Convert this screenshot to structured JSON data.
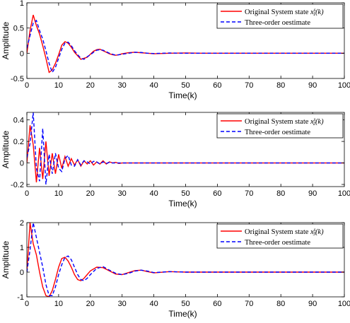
{
  "chart_data": [
    {
      "type": "line",
      "xlabel": "Time(k)",
      "ylabel": "Amplitude",
      "xlim": [
        0,
        100
      ],
      "ylim": [
        -0.5,
        1
      ],
      "xticks": [
        "0",
        "10",
        "20",
        "30",
        "40",
        "50",
        "60",
        "70",
        "80",
        "90",
        "100"
      ],
      "yticks": [
        "-0.5",
        "0",
        "0.5",
        "1"
      ],
      "grid": false,
      "legend_position": "top-right",
      "series": [
        {
          "name": "Original System state",
          "name_math": "x",
          "name_sup": "s",
          "name_sub": "1",
          "name_tail": "(k)",
          "color": "#ff0000",
          "style": "solid",
          "x": [
            0,
            1,
            2,
            3,
            4,
            5,
            6,
            7,
            8,
            9,
            10,
            11,
            12,
            13,
            14,
            15,
            16,
            17,
            18,
            19,
            20,
            21,
            22,
            23,
            24,
            25,
            26,
            27,
            28,
            29,
            30,
            32,
            34,
            36,
            38,
            40,
            45,
            50,
            55,
            60,
            70,
            80,
            90,
            100
          ],
          "y": [
            0,
            0.45,
            0.76,
            0.55,
            0.38,
            0.15,
            -0.1,
            -0.38,
            -0.33,
            -0.2,
            -0.03,
            0.16,
            0.23,
            0.2,
            0.12,
            0.02,
            -0.05,
            -0.12,
            -0.1,
            -0.08,
            -0.02,
            0.04,
            0.07,
            0.08,
            0.05,
            0.02,
            -0.01,
            -0.03,
            -0.04,
            -0.03,
            -0.01,
            0.01,
            0.02,
            0.01,
            0,
            -0.01,
            0,
            0.005,
            0,
            0,
            0,
            0,
            0,
            0
          ]
        },
        {
          "name": "Three-order oestimate",
          "color": "#0000ff",
          "style": "dashed",
          "x": [
            0,
            1,
            2,
            3,
            4,
            5,
            6,
            7,
            8,
            9,
            10,
            11,
            12,
            13,
            14,
            15,
            16,
            17,
            18,
            19,
            20,
            21,
            22,
            23,
            24,
            25,
            26,
            27,
            28,
            29,
            30,
            32,
            34,
            36,
            38,
            40,
            45,
            50,
            55,
            60,
            70,
            80,
            90,
            100
          ],
          "y": [
            0.1,
            0.35,
            0.6,
            0.65,
            0.45,
            0.28,
            0.05,
            -0.2,
            -0.38,
            -0.28,
            -0.1,
            0.08,
            0.2,
            0.22,
            0.15,
            0.05,
            -0.03,
            -0.1,
            -0.12,
            -0.07,
            -0.03,
            0.02,
            0.06,
            0.07,
            0.06,
            0.03,
            0,
            -0.02,
            -0.04,
            -0.03,
            -0.02,
            0,
            0.02,
            0.015,
            0,
            -0.005,
            0.005,
            0,
            0,
            0,
            0,
            0,
            0,
            0
          ]
        }
      ]
    },
    {
      "type": "line",
      "xlabel": "Time(k)",
      "ylabel": "Amplitude",
      "xlim": [
        0,
        100
      ],
      "ylim": [
        -0.22,
        0.47
      ],
      "xticks": [
        "0",
        "10",
        "20",
        "30",
        "40",
        "50",
        "60",
        "70",
        "80",
        "90",
        "100"
      ],
      "yticks": [
        "-0.2",
        "0",
        "0.2",
        "0.4"
      ],
      "grid": false,
      "legend_position": "top-right",
      "series": [
        {
          "name": "Original System state",
          "name_math": "x",
          "name_sup": "s",
          "name_sub": "2",
          "name_tail": "(k)",
          "color": "#ff0000",
          "style": "solid",
          "x": [
            0,
            1,
            2,
            3,
            4,
            5,
            6,
            7,
            8,
            9,
            10,
            11,
            12,
            13,
            14,
            15,
            16,
            17,
            18,
            19,
            20,
            21,
            22,
            23,
            24,
            25,
            26,
            27,
            28,
            29,
            30,
            32,
            34,
            36,
            38,
            40,
            50,
            60,
            70,
            80,
            90,
            100
          ],
          "y": [
            0,
            0.35,
            0.17,
            -0.18,
            0.14,
            -0.15,
            0.2,
            -0.12,
            0.09,
            -0.1,
            0.08,
            -0.05,
            0.06,
            -0.03,
            0.04,
            -0.02,
            0.03,
            -0.03,
            0.02,
            -0.01,
            0.02,
            -0.02,
            0.01,
            -0.01,
            0.02,
            -0.01,
            0.01,
            0,
            0.005,
            -0.005,
            0,
            0,
            0,
            0,
            0,
            0,
            0,
            0,
            0,
            0,
            0,
            0
          ]
        },
        {
          "name": "Three-order oestimate",
          "color": "#0000ff",
          "style": "dashed",
          "x": [
            0,
            1,
            2,
            3,
            4,
            5,
            6,
            7,
            8,
            9,
            10,
            11,
            12,
            13,
            14,
            15,
            16,
            17,
            18,
            19,
            20,
            21,
            22,
            23,
            24,
            25,
            26,
            27,
            28,
            29,
            30,
            32,
            34,
            36,
            38,
            40,
            50,
            60,
            70,
            80,
            90,
            100
          ],
          "y": [
            0.05,
            0.18,
            0.47,
            -0.05,
            -0.17,
            0.32,
            -0.2,
            0.08,
            -0.1,
            0.09,
            -0.05,
            -0.08,
            0.04,
            0.07,
            -0.02,
            -0.03,
            0.03,
            -0.02,
            0.02,
            0.01,
            -0.01,
            0.015,
            0.01,
            -0.01,
            0.01,
            -0.005,
            0.005,
            0,
            0,
            0,
            0,
            0,
            0,
            0,
            0,
            0,
            0,
            0,
            0,
            0,
            0,
            0
          ]
        }
      ]
    },
    {
      "type": "line",
      "xlabel": "Time(k)",
      "ylabel": "Amplitude",
      "xlim": [
        0,
        100
      ],
      "ylim": [
        -1,
        2
      ],
      "xticks": [
        "0",
        "10",
        "20",
        "30",
        "40",
        "50",
        "60",
        "70",
        "80",
        "90",
        "100"
      ],
      "yticks": [
        "-1",
        "0",
        "1",
        "2"
      ],
      "grid": false,
      "legend_position": "top-right",
      "series": [
        {
          "name": "Original System state",
          "name_math": "x",
          "name_sup": "s",
          "name_sub": "3",
          "name_tail": "(k)",
          "color": "#ff0000",
          "style": "solid",
          "x": [
            0,
            1,
            2,
            3,
            4,
            5,
            6,
            7,
            8,
            9,
            10,
            11,
            12,
            13,
            14,
            15,
            16,
            17,
            18,
            19,
            20,
            22,
            24,
            26,
            28,
            30,
            32,
            34,
            36,
            38,
            40,
            45,
            50,
            55,
            60,
            70,
            80,
            90,
            100
          ],
          "y": [
            0,
            2.0,
            1.15,
            0.7,
            0.0,
            -0.6,
            -0.95,
            -1.0,
            -0.75,
            -0.3,
            0.2,
            0.55,
            0.6,
            0.45,
            0.2,
            -0.1,
            -0.3,
            -0.35,
            -0.25,
            -0.1,
            0.05,
            0.2,
            0.18,
            0.05,
            -0.08,
            -0.1,
            -0.02,
            0.06,
            0.08,
            0.02,
            -0.03,
            0.02,
            0,
            0,
            0,
            0,
            0,
            0,
            0
          ]
        },
        {
          "name": "Three-order oestimate",
          "color": "#0000ff",
          "style": "dashed",
          "x": [
            0,
            1,
            2,
            3,
            4,
            5,
            6,
            7,
            8,
            9,
            10,
            11,
            12,
            13,
            14,
            15,
            16,
            17,
            18,
            19,
            20,
            22,
            24,
            26,
            28,
            30,
            32,
            34,
            36,
            38,
            40,
            45,
            50,
            55,
            60,
            70,
            80,
            90,
            100
          ],
          "y": [
            0,
            0.9,
            2.0,
            1.4,
            0.8,
            0.2,
            -0.5,
            -0.95,
            -0.95,
            -0.6,
            -0.1,
            0.3,
            0.6,
            0.65,
            0.5,
            0.2,
            -0.1,
            -0.3,
            -0.35,
            -0.25,
            -0.1,
            0.15,
            0.22,
            0.08,
            -0.05,
            -0.1,
            -0.05,
            0.04,
            0.08,
            0.04,
            -0.02,
            0.02,
            0,
            0,
            0,
            0,
            0,
            0,
            0
          ]
        }
      ]
    }
  ]
}
